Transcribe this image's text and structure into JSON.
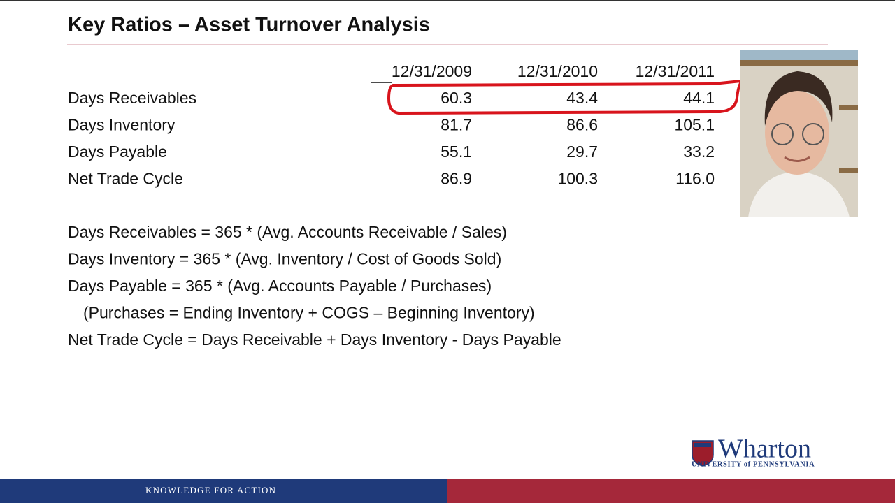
{
  "header": {
    "title": "Key Ratios – Asset Turnover Analysis"
  },
  "table": {
    "columns": [
      "12/31/2009",
      "12/31/2010",
      "12/31/2011"
    ],
    "rows": [
      [
        "Days Receivables",
        "60.3",
        "43.4",
        "44.1"
      ],
      [
        "Days Inventory",
        "81.7",
        "86.6",
        "105.1"
      ],
      [
        "Days Payable",
        "55.1",
        "29.7",
        "33.2"
      ],
      [
        "Net Trade Cycle",
        "86.9",
        "100.3",
        "116.0"
      ]
    ]
  },
  "formulas": [
    "Days Receivables =  365 * (Avg. Accounts Receivable / Sales)",
    "Days Inventory = 365 * (Avg. Inventory / Cost of Goods Sold)",
    "Days Payable = 365 * (Avg. Accounts Payable / Purchases)",
    "(Purchases = Ending Inventory + COGS – Beginning Inventory)",
    "Net Trade Cycle = Days Receivable + Days Inventory - Days Payable"
  ],
  "logo": {
    "name": "Wharton",
    "subtitle": "UNIVERSITY of PENNSYLVANIA"
  },
  "footer": {
    "tagline": "KNOWLEDGE FOR ACTION"
  }
}
